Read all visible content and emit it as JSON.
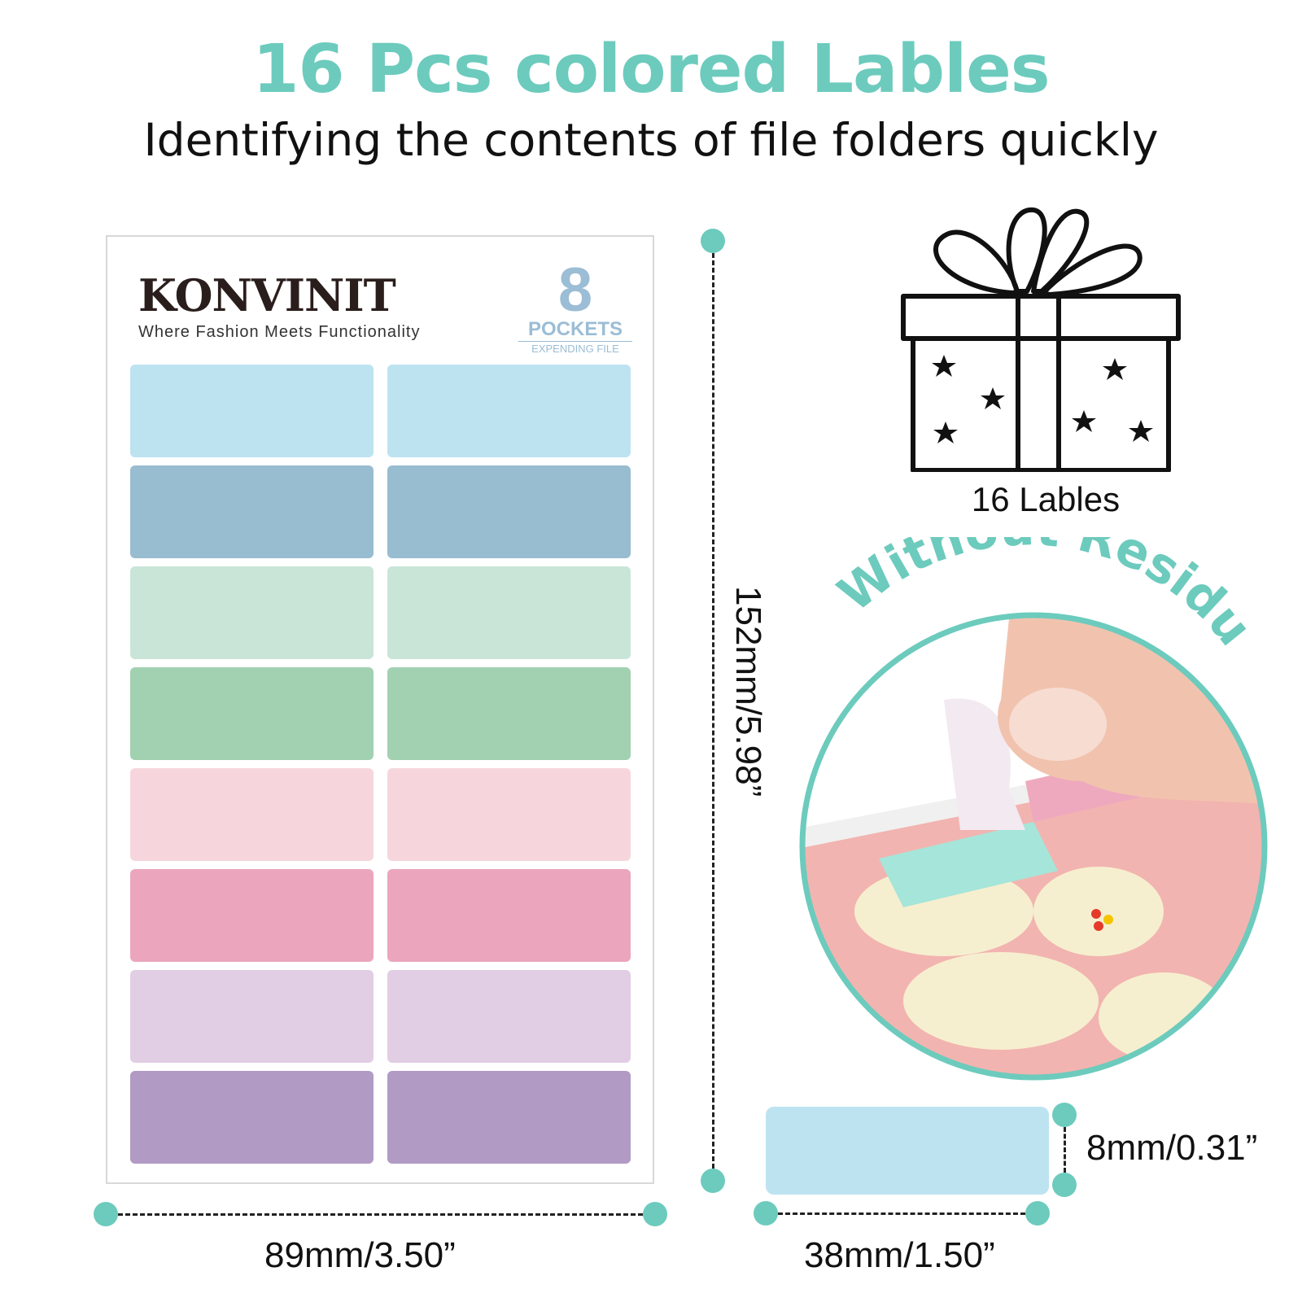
{
  "header": {
    "title": "16 Pcs colored Lables",
    "subtitle": "Identifying the contents of file folders quickly"
  },
  "sheet": {
    "brand": "KONVINIT",
    "tagline": "Where Fashion Meets Functionality",
    "pockets_number": "8",
    "pockets_word": "POCKETS",
    "pockets_sub": "EXPENDING FILE",
    "label_colors": [
      "#bde3f1",
      "#98bcd0",
      "#c9e5d8",
      "#a1d1b1",
      "#f6d6dc",
      "#eba6bd",
      "#e1cde4",
      "#b19bc5"
    ]
  },
  "dimensions": {
    "sheet_width": "89mm/3.50”",
    "sheet_height": "152mm/5.98”",
    "label_width": "38mm/1.50”",
    "label_height": "8mm/0.31”"
  },
  "gift": {
    "icon": "gift-box-icon",
    "caption": "16 Lables"
  },
  "residue": {
    "text": "Without Residue",
    "icon": "peeling-label-photo"
  },
  "colors": {
    "accent": "#6ccbbd"
  }
}
